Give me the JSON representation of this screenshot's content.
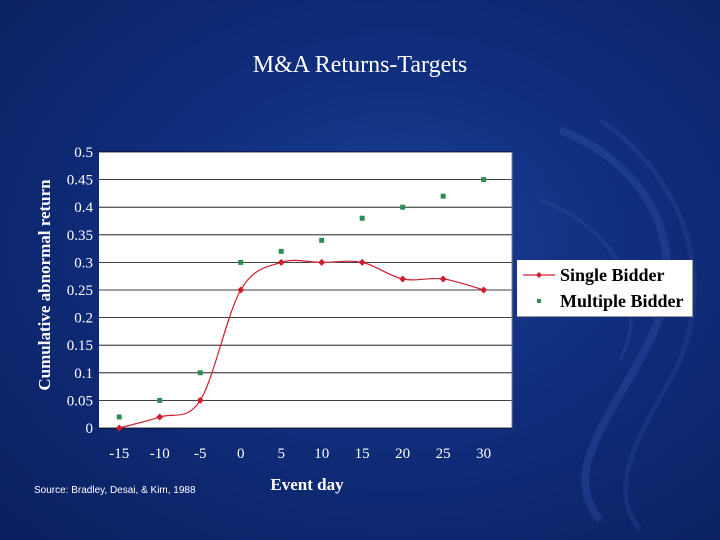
{
  "slide": {
    "title": "M&A Returns-Targets",
    "source": "Source: Bradley, Desai, & Kim, 1988"
  },
  "colors": {
    "single_bidder": "#cc1e2e",
    "multiple_bidder": "#2e8b57",
    "plot_background": "#ffffff",
    "slide_background": "#102d7c"
  },
  "chart_data": {
    "type": "scatter",
    "title": "M&A Returns-Targets",
    "xlabel": "Event day",
    "ylabel": "Cumulative abnormal return",
    "x": [
      -15,
      -10,
      -5,
      0,
      5,
      10,
      15,
      20,
      25,
      30
    ],
    "x_ticks": [
      "-15",
      "-10",
      "-5",
      "0",
      "5",
      "10",
      "15",
      "20",
      "25",
      "30"
    ],
    "y_ticks": [
      "0",
      "0.05",
      "0.1",
      "0.15",
      "0.2",
      "0.25",
      "0.3",
      "0.35",
      "0.4",
      "0.45",
      "0.5"
    ],
    "ylim": [
      0,
      0.5
    ],
    "grid": "horizontal",
    "legend_position": "right",
    "series": [
      {
        "name": "Single Bidder",
        "marker": "diamond",
        "line": "smooth",
        "values": [
          0.0,
          0.02,
          0.05,
          0.25,
          0.3,
          0.3,
          0.3,
          0.27,
          0.27,
          0.25
        ]
      },
      {
        "name": "Multiple Bidder",
        "marker": "square",
        "line": "none",
        "values": [
          0.02,
          0.05,
          0.1,
          0.3,
          0.32,
          0.34,
          0.38,
          0.4,
          0.42,
          0.45
        ]
      }
    ]
  }
}
